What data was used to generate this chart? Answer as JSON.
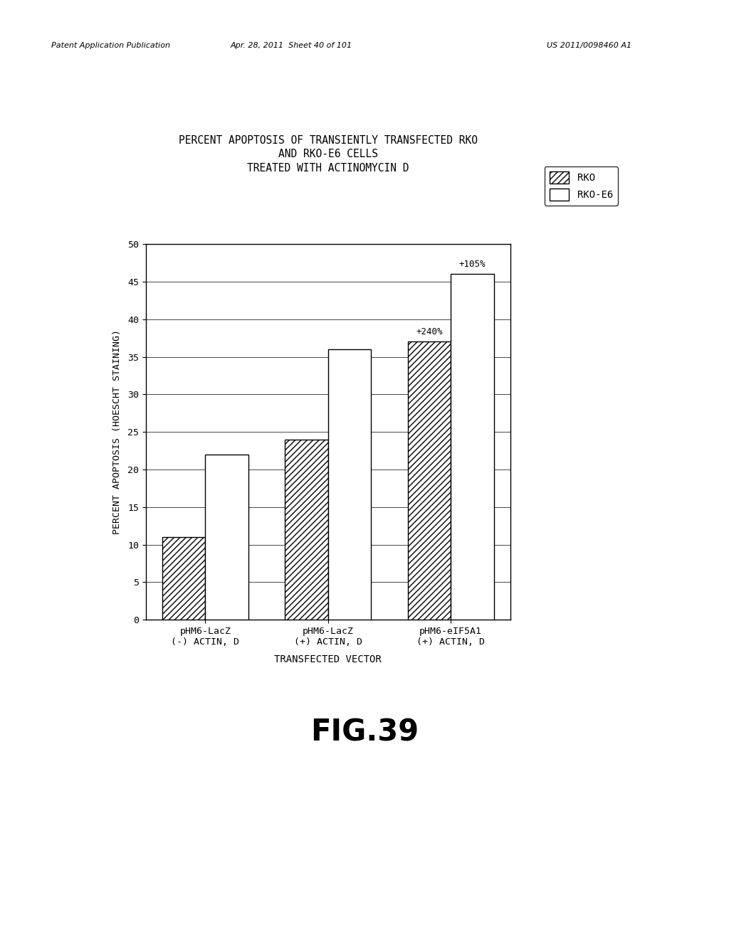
{
  "title_line1": "PERCENT APOPTOSIS OF TRANSIENTLY TRANSFECTED RKO",
  "title_line2": "AND RKO-E6 CELLS",
  "title_line3": "TREATED WITH ACTINOMYCIN D",
  "xlabel": "TRANSFECTED VECTOR",
  "ylabel": "PERCENT APOPTOSIS (HOESCHT STAINING)",
  "categories": [
    "pHM6-LacZ\n(-) ACTIN, D",
    "pHM6-LacZ\n(+) ACTIN, D",
    "pHM6-eIF5A1\n(+) ACTIN, D"
  ],
  "rko_values": [
    11,
    24,
    37
  ],
  "rko_e6_values": [
    22,
    36,
    46
  ],
  "annotations_rko": [
    null,
    null,
    "+240%"
  ],
  "annotations_rko_e6": [
    null,
    null,
    "+105%"
  ],
  "ylim": [
    0,
    50
  ],
  "yticks": [
    0,
    5,
    10,
    15,
    20,
    25,
    30,
    35,
    40,
    45,
    50
  ],
  "legend_labels": [
    "RKO",
    "RKO-E6"
  ],
  "background_color": "#ffffff",
  "bar_width": 0.35,
  "hatch_rko": "////",
  "hatch_rko_e6": "",
  "fig_caption": "FIG.39",
  "header_left": "Patent Application Publication",
  "header_mid": "Apr. 28, 2011  Sheet 40 of 101",
  "header_right": "US 2011/0098460 A1"
}
